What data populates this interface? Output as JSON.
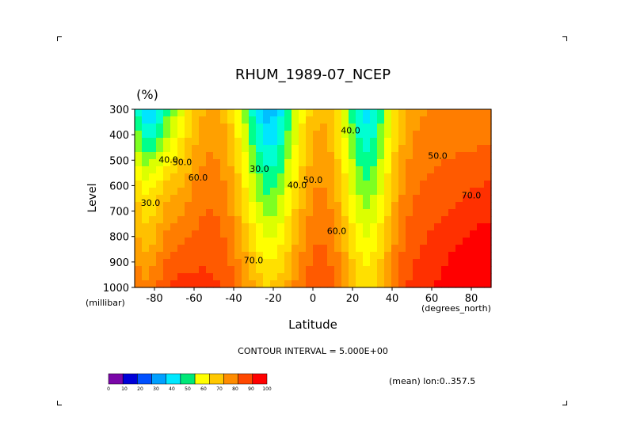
{
  "chart_data": {
    "type": "contour",
    "title": "RHUM_1989-07_NCEP",
    "units": "(%)",
    "xlabel": "Latitude",
    "ylabel": "Level",
    "x_unit": "(degrees_north)",
    "y_unit": "(millibar)",
    "x_ticks": [
      -80,
      -60,
      -40,
      -20,
      0,
      20,
      40,
      60,
      80
    ],
    "x_tick_labels": [
      "-80",
      "-60",
      "-40",
      "-20",
      "0",
      "20",
      "40",
      "60",
      "80"
    ],
    "y_ticks": [
      300,
      400,
      500,
      600,
      700,
      800,
      900,
      1000
    ],
    "y_tick_labels": [
      "300",
      "400",
      "500",
      "600",
      "700",
      "800",
      "900",
      "1000"
    ],
    "xlim": [
      -90,
      90
    ],
    "ylim": [
      1000,
      300
    ],
    "contour_interval_text": "CONTOUR INTERVAL = 5.000E+00",
    "mean_text": "(mean) lon:0..357.5",
    "contour_labels": [
      {
        "text": "30.0",
        "lat": -82,
        "level": 680
      },
      {
        "text": "40.0",
        "lat": -73,
        "level": 510
      },
      {
        "text": "50.0",
        "lat": -66,
        "level": 520
      },
      {
        "text": "60.0",
        "lat": -58,
        "level": 580
      },
      {
        "text": "30.0",
        "lat": -27,
        "level": 545
      },
      {
        "text": "40.0",
        "lat": -8,
        "level": 610
      },
      {
        "text": "50.0",
        "lat": 0,
        "level": 590
      },
      {
        "text": "60.0",
        "lat": 12,
        "level": 790
      },
      {
        "text": "70.0",
        "lat": -30,
        "level": 905
      },
      {
        "text": "40.0",
        "lat": 19,
        "level": 395
      },
      {
        "text": "50.0",
        "lat": 63,
        "level": 495
      },
      {
        "text": "70.0",
        "lat": 80,
        "level": 650
      }
    ],
    "colorbar": {
      "levels": [
        0,
        10,
        20,
        30,
        40,
        50,
        60,
        70,
        80,
        90,
        100
      ],
      "labels": [
        "0",
        "10",
        "20",
        "30",
        "40",
        "50",
        "60",
        "70",
        "80",
        "90",
        "100"
      ],
      "colors": [
        "#7a06a8",
        "#0000d8",
        "#0050ff",
        "#00a0ff",
        "#00e8ff",
        "#00e878",
        "#ffff00",
        "#ffc800",
        "#ff8c00",
        "#ff4800",
        "#ff0000"
      ]
    },
    "color_bands": [
      "#8a1aa8",
      "#3010c8",
      "#0000e8",
      "#0a40ff",
      "#0070ff",
      "#0099ff",
      "#00bfff",
      "#00e5ff",
      "#00ffd2",
      "#00ff8c",
      "#7dff22",
      "#dcff00",
      "#ffff00",
      "#ffe000",
      "#ffc000",
      "#ffa000",
      "#ff7d00",
      "#ff5a00",
      "#ff3000",
      "#ff0000"
    ]
  }
}
